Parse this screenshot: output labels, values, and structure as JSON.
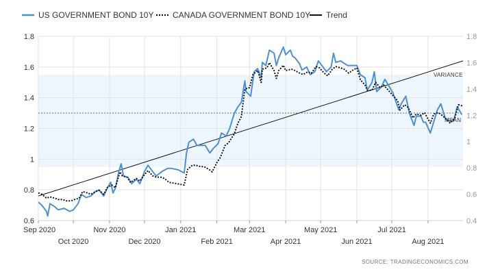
{
  "chart_data": {
    "type": "line",
    "title": "",
    "legend": {
      "placement": "top-left",
      "items": [
        {
          "label": "US GOVERNMENT BOND 10Y",
          "style": "solid",
          "color": "#4a90d9"
        },
        {
          "label": "CANADA GOVERNMENT BOND 10Y",
          "style": "dotted",
          "color": "#111111"
        },
        {
          "label": "Trend",
          "style": "solid",
          "color": "#111111"
        }
      ]
    },
    "x_axis": {
      "start": "2020-09-01",
      "end": "2021-08-31",
      "ticks_top_row": [
        {
          "label": "Sep 2020",
          "date": "2020-09-01"
        },
        {
          "label": "Nov 2020",
          "date": "2020-11-01"
        },
        {
          "label": "Jan 2021",
          "date": "2021-01-01"
        },
        {
          "label": "Mar 2021",
          "date": "2021-03-01"
        },
        {
          "label": "May 2021",
          "date": "2021-05-01"
        },
        {
          "label": "Jul 2021",
          "date": "2021-07-01"
        }
      ],
      "ticks_bottom_row": [
        {
          "label": "Oct 2020",
          "date": "2020-10-01"
        },
        {
          "label": "Dec 2020",
          "date": "2020-12-01"
        },
        {
          "label": "Feb 2021",
          "date": "2021-02-01"
        },
        {
          "label": "Apr 2021",
          "date": "2021-04-01"
        },
        {
          "label": "Jun 2021",
          "date": "2021-06-01"
        },
        {
          "label": "Aug 2021",
          "date": "2021-08-01"
        }
      ]
    },
    "y_left": {
      "range": [
        0.6,
        1.8
      ],
      "ticks": [
        "0.6",
        "0.8",
        "1",
        "1.2",
        "1.4",
        "1.6",
        "1.8"
      ]
    },
    "y_right": {
      "range": [
        0.4,
        1.8
      ],
      "ticks": [
        "0.4",
        "0.6",
        "0.8",
        "1",
        "1.2",
        "1.4",
        "1.6",
        "1.8"
      ]
    },
    "grid": true,
    "mean": 1.3,
    "variance_band": [
      0.95,
      1.55
    ],
    "trend": {
      "start": {
        "date": "2020-09-01",
        "value": 0.76
      },
      "end": {
        "date": "2021-08-31",
        "value": 1.64
      }
    },
    "annotations": {
      "variance": "VARIANCE",
      "mean": "MEAN"
    },
    "series": [
      {
        "name": "US GOVERNMENT BOND 10Y",
        "axis": "left",
        "points": [
          [
            "2020-09-01",
            0.72
          ],
          [
            "2020-09-04",
            0.7
          ],
          [
            "2020-09-08",
            0.66
          ],
          [
            "2020-09-09",
            0.63
          ],
          [
            "2020-09-11",
            0.71
          ],
          [
            "2020-09-15",
            0.69
          ],
          [
            "2020-09-18",
            0.67
          ],
          [
            "2020-09-23",
            0.68
          ],
          [
            "2020-09-28",
            0.66
          ],
          [
            "2020-10-01",
            0.67
          ],
          [
            "2020-10-05",
            0.71
          ],
          [
            "2020-10-08",
            0.77
          ],
          [
            "2020-10-12",
            0.75
          ],
          [
            "2020-10-16",
            0.76
          ],
          [
            "2020-10-20",
            0.79
          ],
          [
            "2020-10-23",
            0.8
          ],
          [
            "2020-10-27",
            0.76
          ],
          [
            "2020-10-30",
            0.81
          ],
          [
            "2020-11-02",
            0.85
          ],
          [
            "2020-11-04",
            0.78
          ],
          [
            "2020-11-06",
            0.81
          ],
          [
            "2020-11-09",
            0.92
          ],
          [
            "2020-11-11",
            0.97
          ],
          [
            "2020-11-13",
            0.89
          ],
          [
            "2020-11-17",
            0.88
          ],
          [
            "2020-11-20",
            0.84
          ],
          [
            "2020-11-24",
            0.87
          ],
          [
            "2020-11-27",
            0.84
          ],
          [
            "2020-12-01",
            0.92
          ],
          [
            "2020-12-04",
            0.96
          ],
          [
            "2020-12-08",
            0.92
          ],
          [
            "2020-12-11",
            0.89
          ],
          [
            "2020-12-16",
            0.92
          ],
          [
            "2020-12-21",
            0.94
          ],
          [
            "2020-12-24",
            0.94
          ],
          [
            "2020-12-30",
            0.93
          ],
          [
            "2021-01-04",
            0.91
          ],
          [
            "2021-01-06",
            1.04
          ],
          [
            "2021-01-08",
            1.11
          ],
          [
            "2021-01-12",
            1.13
          ],
          [
            "2021-01-15",
            1.09
          ],
          [
            "2021-01-19",
            1.09
          ],
          [
            "2021-01-22",
            1.09
          ],
          [
            "2021-01-26",
            1.04
          ],
          [
            "2021-01-29",
            1.07
          ],
          [
            "2021-02-02",
            1.1
          ],
          [
            "2021-02-05",
            1.17
          ],
          [
            "2021-02-09",
            1.15
          ],
          [
            "2021-02-12",
            1.2
          ],
          [
            "2021-02-16",
            1.3
          ],
          [
            "2021-02-19",
            1.34
          ],
          [
            "2021-02-22",
            1.37
          ],
          [
            "2021-02-25",
            1.51
          ],
          [
            "2021-02-26",
            1.44
          ],
          [
            "2021-03-02",
            1.41
          ],
          [
            "2021-03-05",
            1.57
          ],
          [
            "2021-03-08",
            1.59
          ],
          [
            "2021-03-11",
            1.53
          ],
          [
            "2021-03-12",
            1.63
          ],
          [
            "2021-03-15",
            1.61
          ],
          [
            "2021-03-18",
            1.71
          ],
          [
            "2021-03-22",
            1.69
          ],
          [
            "2021-03-24",
            1.61
          ],
          [
            "2021-03-26",
            1.66
          ],
          [
            "2021-03-30",
            1.73
          ],
          [
            "2021-04-01",
            1.68
          ],
          [
            "2021-04-05",
            1.71
          ],
          [
            "2021-04-07",
            1.67
          ],
          [
            "2021-04-09",
            1.66
          ],
          [
            "2021-04-13",
            1.62
          ],
          [
            "2021-04-15",
            1.58
          ],
          [
            "2021-04-19",
            1.6
          ],
          [
            "2021-04-22",
            1.55
          ],
          [
            "2021-04-26",
            1.57
          ],
          [
            "2021-04-29",
            1.64
          ],
          [
            "2021-05-03",
            1.6
          ],
          [
            "2021-05-06",
            1.57
          ],
          [
            "2021-05-10",
            1.6
          ],
          [
            "2021-05-12",
            1.69
          ],
          [
            "2021-05-14",
            1.63
          ],
          [
            "2021-05-18",
            1.64
          ],
          [
            "2021-05-20",
            1.63
          ],
          [
            "2021-05-24",
            1.61
          ],
          [
            "2021-05-27",
            1.61
          ],
          [
            "2021-06-01",
            1.61
          ],
          [
            "2021-06-04",
            1.55
          ],
          [
            "2021-06-08",
            1.53
          ],
          [
            "2021-06-10",
            1.45
          ],
          [
            "2021-06-14",
            1.5
          ],
          [
            "2021-06-16",
            1.57
          ],
          [
            "2021-06-18",
            1.44
          ],
          [
            "2021-06-22",
            1.47
          ],
          [
            "2021-06-25",
            1.52
          ],
          [
            "2021-06-29",
            1.47
          ],
          [
            "2021-07-02",
            1.43
          ],
          [
            "2021-07-07",
            1.32
          ],
          [
            "2021-07-09",
            1.36
          ],
          [
            "2021-07-13",
            1.41
          ],
          [
            "2021-07-16",
            1.3
          ],
          [
            "2021-07-20",
            1.22
          ],
          [
            "2021-07-22",
            1.28
          ],
          [
            "2021-07-26",
            1.28
          ],
          [
            "2021-07-28",
            1.24
          ],
          [
            "2021-07-30",
            1.24
          ],
          [
            "2021-08-03",
            1.17
          ],
          [
            "2021-08-05",
            1.22
          ],
          [
            "2021-08-09",
            1.32
          ],
          [
            "2021-08-12",
            1.36
          ],
          [
            "2021-08-16",
            1.26
          ],
          [
            "2021-08-19",
            1.25
          ],
          [
            "2021-08-23",
            1.25
          ],
          [
            "2021-08-26",
            1.34
          ],
          [
            "2021-08-30",
            1.29
          ]
        ]
      },
      {
        "name": "CANADA GOVERNMENT BOND 10Y",
        "axis": "right",
        "points": [
          [
            "2020-09-01",
            0.61
          ],
          [
            "2020-09-04",
            0.6
          ],
          [
            "2020-09-08",
            0.57
          ],
          [
            "2020-09-11",
            0.58
          ],
          [
            "2020-09-15",
            0.57
          ],
          [
            "2020-09-18",
            0.56
          ],
          [
            "2020-09-22",
            0.56
          ],
          [
            "2020-09-25",
            0.55
          ],
          [
            "2020-09-29",
            0.55
          ],
          [
            "2020-10-02",
            0.56
          ],
          [
            "2020-10-06",
            0.57
          ],
          [
            "2020-10-09",
            0.62
          ],
          [
            "2020-10-13",
            0.61
          ],
          [
            "2020-10-16",
            0.6
          ],
          [
            "2020-10-20",
            0.62
          ],
          [
            "2020-10-23",
            0.63
          ],
          [
            "2020-10-27",
            0.6
          ],
          [
            "2020-10-30",
            0.65
          ],
          [
            "2020-11-03",
            0.67
          ],
          [
            "2020-11-06",
            0.65
          ],
          [
            "2020-11-10",
            0.77
          ],
          [
            "2020-11-12",
            0.74
          ],
          [
            "2020-11-16",
            0.73
          ],
          [
            "2020-11-19",
            0.69
          ],
          [
            "2020-11-24",
            0.72
          ],
          [
            "2020-11-27",
            0.7
          ],
          [
            "2020-12-01",
            0.75
          ],
          [
            "2020-12-04",
            0.78
          ],
          [
            "2020-12-08",
            0.74
          ],
          [
            "2020-12-11",
            0.73
          ],
          [
            "2020-12-15",
            0.73
          ],
          [
            "2020-12-18",
            0.72
          ],
          [
            "2020-12-22",
            0.69
          ],
          [
            "2020-12-29",
            0.68
          ],
          [
            "2021-01-04",
            0.67
          ],
          [
            "2021-01-07",
            0.79
          ],
          [
            "2021-01-11",
            0.82
          ],
          [
            "2021-01-14",
            0.82
          ],
          [
            "2021-01-18",
            0.81
          ],
          [
            "2021-01-21",
            0.81
          ],
          [
            "2021-01-25",
            0.79
          ],
          [
            "2021-01-28",
            0.77
          ],
          [
            "2021-02-01",
            0.84
          ],
          [
            "2021-02-04",
            0.88
          ],
          [
            "2021-02-08",
            0.97
          ],
          [
            "2021-02-11",
            0.99
          ],
          [
            "2021-02-16",
            1.06
          ],
          [
            "2021-02-19",
            1.14
          ],
          [
            "2021-02-22",
            1.19
          ],
          [
            "2021-02-25",
            1.4
          ],
          [
            "2021-03-01",
            1.41
          ],
          [
            "2021-03-04",
            1.51
          ],
          [
            "2021-03-08",
            1.54
          ],
          [
            "2021-03-11",
            1.45
          ],
          [
            "2021-03-12",
            1.55
          ],
          [
            "2021-03-16",
            1.56
          ],
          [
            "2021-03-18",
            1.6
          ],
          [
            "2021-03-22",
            1.54
          ],
          [
            "2021-03-24",
            1.48
          ],
          [
            "2021-03-26",
            1.54
          ],
          [
            "2021-03-30",
            1.58
          ],
          [
            "2021-04-01",
            1.54
          ],
          [
            "2021-04-06",
            1.55
          ],
          [
            "2021-04-09",
            1.54
          ],
          [
            "2021-04-13",
            1.52
          ],
          [
            "2021-04-16",
            1.51
          ],
          [
            "2021-04-20",
            1.53
          ],
          [
            "2021-04-23",
            1.52
          ],
          [
            "2021-04-27",
            1.57
          ],
          [
            "2021-04-30",
            1.56
          ],
          [
            "2021-05-04",
            1.52
          ],
          [
            "2021-05-07",
            1.5
          ],
          [
            "2021-05-11",
            1.55
          ],
          [
            "2021-05-14",
            1.57
          ],
          [
            "2021-05-18",
            1.56
          ],
          [
            "2021-05-21",
            1.55
          ],
          [
            "2021-05-25",
            1.52
          ],
          [
            "2021-05-28",
            1.54
          ],
          [
            "2021-06-01",
            1.56
          ],
          [
            "2021-06-04",
            1.47
          ],
          [
            "2021-06-08",
            1.43
          ],
          [
            "2021-06-10",
            1.39
          ],
          [
            "2021-06-14",
            1.39
          ],
          [
            "2021-06-17",
            1.45
          ],
          [
            "2021-06-21",
            1.41
          ],
          [
            "2021-06-24",
            1.43
          ],
          [
            "2021-06-28",
            1.39
          ],
          [
            "2021-07-02",
            1.35
          ],
          [
            "2021-07-06",
            1.31
          ],
          [
            "2021-07-08",
            1.24
          ],
          [
            "2021-07-12",
            1.28
          ],
          [
            "2021-07-15",
            1.26
          ],
          [
            "2021-07-19",
            1.18
          ],
          [
            "2021-07-22",
            1.21
          ],
          [
            "2021-07-26",
            1.2
          ],
          [
            "2021-07-29",
            1.22
          ],
          [
            "2021-08-03",
            1.14
          ],
          [
            "2021-08-06",
            1.21
          ],
          [
            "2021-08-10",
            1.22
          ],
          [
            "2021-08-13",
            1.2
          ],
          [
            "2021-08-17",
            1.17
          ],
          [
            "2021-08-20",
            1.14
          ],
          [
            "2021-08-24",
            1.18
          ],
          [
            "2021-08-27",
            1.28
          ],
          [
            "2021-08-31",
            1.27
          ]
        ]
      }
    ]
  },
  "source": "SOURCE:  TRADINGECONOMICS.COM"
}
